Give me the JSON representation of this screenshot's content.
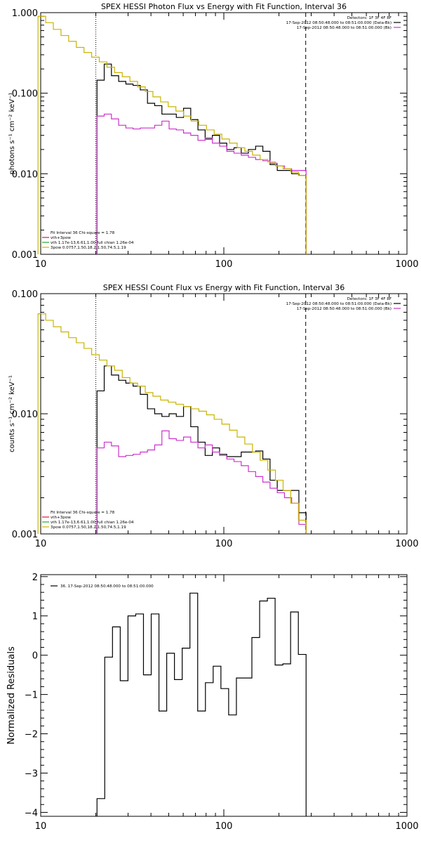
{
  "chart_data": [
    {
      "type": "line",
      "title": "SPEX HESSI Photon Flux vs Energy with Fit Function, Interval 36",
      "ylabel": "photons s⁻¹ cm⁻² keV⁻¹",
      "xscale": "log",
      "yscale": "log",
      "xlim": [
        10,
        1000
      ],
      "ylim": [
        0.001,
        1.0
      ],
      "xticks": [
        {
          "v": 10,
          "label": "10"
        },
        {
          "v": 100,
          "label": "100"
        },
        {
          "v": 1000,
          "label": "1000"
        }
      ],
      "yticks": [
        {
          "v": 0.001,
          "label": "0.001"
        },
        {
          "v": 0.01,
          "label": "0.010"
        },
        {
          "v": 0.1,
          "label": "0.100"
        },
        {
          "v": 1.0,
          "label": "1.000"
        }
      ],
      "fit_range": [
        20,
        280
      ],
      "legend_tr": [
        {
          "text": "Detectors: 1F 3F 4F 8F",
          "color": null
        },
        {
          "text": "17-Sep-2012 08:50:48.000 to 08:51:00.000 (Data-Bk)",
          "color": "#000000"
        },
        {
          "text": "17-Sep-2012 08:50:48.000 to 08:51:00.000 (Bk)",
          "color": "#cc33cc"
        }
      ],
      "legend_bl": [
        {
          "text": "Fit Interval 36   Chi-square = 1.78",
          "color": null
        },
        {
          "text": "vth+3pow",
          "color": "#d11a3c"
        },
        {
          "text": "vth 1.17e-13,6.61,1.00  full chian 1.26e-04",
          "color": "#22aa33"
        },
        {
          "text": "3pow 0.0757,1.50,18.2,1.50,74.5,1.19",
          "color": "#c8b400"
        }
      ],
      "series": [
        {
          "name": "Data-Bk",
          "color": "#000000",
          "from": 20.3,
          "to": 281.3,
          "values": [
            0.145,
            0.23,
            0.165,
            0.14,
            0.13,
            0.125,
            0.11,
            0.075,
            0.07,
            0.055,
            0.055,
            0.05,
            0.065,
            0.047,
            0.035,
            0.027,
            0.03,
            0.024,
            0.02,
            0.021,
            0.018,
            0.02,
            0.022,
            0.019,
            0.013,
            0.011,
            0.011,
            0.01,
            0.0095
          ]
        },
        {
          "name": "Bk",
          "color": "#cc33cc",
          "from": 20.3,
          "to": 281.3,
          "values": [
            0.052,
            0.055,
            0.048,
            0.04,
            0.037,
            0.036,
            0.037,
            0.037,
            0.04,
            0.045,
            0.036,
            0.035,
            0.032,
            0.03,
            0.026,
            0.028,
            0.024,
            0.022,
            0.019,
            0.018,
            0.017,
            0.016,
            0.015,
            0.0145,
            0.0135,
            0.0125,
            0.0115,
            0.011,
            0.011
          ]
        },
        {
          "name": "vth+3pow",
          "color": "#c8b400",
          "from": 9.67,
          "to": 281.3,
          "values": [
            0.9,
            0.75,
            0.62,
            0.52,
            0.44,
            0.37,
            0.32,
            0.28,
            0.245,
            0.21,
            0.18,
            0.16,
            0.14,
            0.12,
            0.105,
            0.09,
            0.078,
            0.068,
            0.06,
            0.052,
            0.045,
            0.04,
            0.035,
            0.031,
            0.027,
            0.024,
            0.021,
            0.019,
            0.017,
            0.015,
            0.014,
            0.0125,
            0.0115,
            0.0105,
            0.0095
          ]
        }
      ]
    },
    {
      "type": "line",
      "title": "SPEX HESSI Count Flux vs Energy with Fit Function, Interval 36",
      "ylabel": "counts s⁻¹ cm⁻² keV⁻¹",
      "xscale": "log",
      "yscale": "log",
      "xlim": [
        10,
        1000
      ],
      "ylim": [
        0.001,
        0.1
      ],
      "xticks": [
        {
          "v": 10,
          "label": "10"
        },
        {
          "v": 100,
          "label": "100"
        },
        {
          "v": 1000,
          "label": "1000"
        }
      ],
      "yticks": [
        {
          "v": 0.001,
          "label": "0.001"
        },
        {
          "v": 0.01,
          "label": "0.010"
        },
        {
          "v": 0.1,
          "label": "0.100"
        }
      ],
      "fit_range": [
        20,
        280
      ],
      "legend_tr": [
        {
          "text": "Detectors: 1F 3F 4F 8F",
          "color": null
        },
        {
          "text": "17-Sep-2012 08:50:48.000 to 08:51:00.000 (Data-Bk)",
          "color": "#000000"
        },
        {
          "text": "17-Sep-2012 08:50:48.000 to 08:51:00.000 (Bk)",
          "color": "#cc33cc"
        }
      ],
      "legend_bl": [
        {
          "text": "Fit Interval 36   Chi-square = 1.78",
          "color": null
        },
        {
          "text": "vth+3pow",
          "color": "#d11a3c"
        },
        {
          "text": "vth 1.17e-13,6.61,1.00  full chian 1.26e-04",
          "color": "#22aa33"
        },
        {
          "text": "3pow 0.0757,1.50,18.2,1.50,74.5,1.19",
          "color": "#c8b400"
        }
      ],
      "series": [
        {
          "name": "Data-Bk",
          "color": "#000000",
          "from": 20.3,
          "to": 281.3,
          "values": [
            0.0155,
            0.025,
            0.021,
            0.019,
            0.018,
            0.017,
            0.0145,
            0.011,
            0.01,
            0.0095,
            0.01,
            0.0095,
            0.0115,
            0.0078,
            0.0058,
            0.0045,
            0.0052,
            0.0046,
            0.0044,
            0.0044,
            0.0048,
            0.0048,
            0.0049,
            0.0042,
            0.0028,
            0.0023,
            0.0023,
            0.0023,
            0.0015
          ]
        },
        {
          "name": "Bk",
          "color": "#cc33cc",
          "from": 20.3,
          "to": 281.3,
          "values": [
            0.0052,
            0.0058,
            0.0054,
            0.0044,
            0.0045,
            0.0046,
            0.0048,
            0.005,
            0.0055,
            0.0072,
            0.0062,
            0.006,
            0.0064,
            0.0058,
            0.0052,
            0.0055,
            0.0048,
            0.0045,
            0.0042,
            0.004,
            0.0037,
            0.0033,
            0.003,
            0.0027,
            0.0024,
            0.0022,
            0.002,
            0.0018,
            0.0012
          ]
        },
        {
          "name": "vth+3pow",
          "color": "#c8b400",
          "from": 9.67,
          "to": 281.3,
          "values": [
            0.068,
            0.06,
            0.053,
            0.048,
            0.043,
            0.039,
            0.035,
            0.031,
            0.028,
            0.025,
            0.023,
            0.02,
            0.018,
            0.017,
            0.015,
            0.014,
            0.013,
            0.0125,
            0.012,
            0.0115,
            0.011,
            0.0105,
            0.0098,
            0.009,
            0.0082,
            0.0073,
            0.0064,
            0.0056,
            0.0048,
            0.0041,
            0.0034,
            0.0028,
            0.0023,
            0.0018,
            0.0013
          ]
        }
      ]
    },
    {
      "type": "line",
      "title": "",
      "ylabel": "Normalized Residuals",
      "xscale": "log",
      "yscale": "linear",
      "xlim": [
        10,
        1000
      ],
      "ylim": [
        -4.1,
        2.05
      ],
      "xticks": [
        {
          "v": 10,
          "label": "10"
        },
        {
          "v": 100,
          "label": "100"
        },
        {
          "v": 1000,
          "label": "1000"
        }
      ],
      "yticks": [
        {
          "v": -4,
          "label": "−4"
        },
        {
          "v": -3,
          "label": "−3"
        },
        {
          "v": -2,
          "label": "−2"
        },
        {
          "v": -1,
          "label": "−1"
        },
        {
          "v": 0,
          "label": "0"
        },
        {
          "v": 1,
          "label": "1"
        },
        {
          "v": 2,
          "label": "2"
        }
      ],
      "legend_tl": [
        {
          "text": "36. 17-Sep-2012 08:50:48.000 to 08:51:00.000",
          "color": "#000000"
        }
      ],
      "series": [
        {
          "name": "36. 17-Sep-2012 08:50:48.000 to 08:51:00.000",
          "color": "#000000",
          "from": 20.3,
          "to": 281.3,
          "values": [
            -3.65,
            -0.05,
            0.72,
            -0.65,
            1.0,
            1.05,
            -0.5,
            1.05,
            -1.42,
            0.05,
            -0.62,
            0.18,
            1.58,
            -1.42,
            -0.7,
            -0.28,
            -0.85,
            -1.52,
            -0.58,
            -0.58,
            0.45,
            1.38,
            1.45,
            -0.25,
            -0.22,
            1.1,
            0.02
          ]
        }
      ]
    }
  ]
}
